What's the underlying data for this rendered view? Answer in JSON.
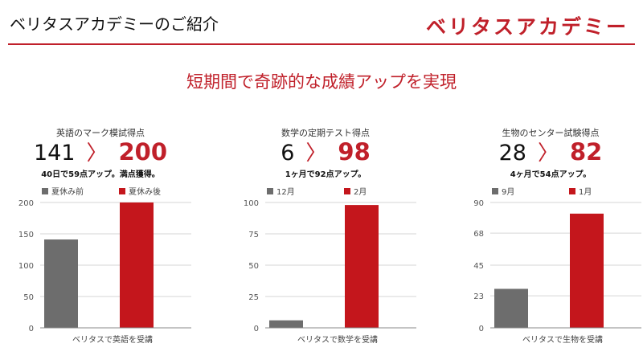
{
  "header": {
    "title": "ベリタスアカデミーのご紹介",
    "logo_text": "ベリタスアカデミー",
    "accent_color": "#c0202a"
  },
  "headline": "短期間で奇跡的な成績アップを実現",
  "panels": [
    {
      "subtitle": "英語のマーク模試得点",
      "score_before": "141",
      "arrow": "〉",
      "score_after": "200",
      "note": "40日で59点アップ。満点獲得。"
    },
    {
      "subtitle": "数学の定期テスト得点",
      "score_before": "6",
      "arrow": "〉",
      "score_after": "98",
      "note": "1ヶ月で92点アップ。"
    },
    {
      "subtitle": "生物のセンター試験得点",
      "score_before": "28",
      "arrow": "〉",
      "score_after": "82",
      "note": "4ヶ月で54点アップ。"
    }
  ],
  "chart_data": [
    {
      "type": "bar",
      "categories": [
        "ベリタスで英語を受講"
      ],
      "series": [
        {
          "name": "夏休み前",
          "values": [
            141
          ],
          "color": "#6d6d6d"
        },
        {
          "name": "夏休み後",
          "values": [
            200
          ],
          "color": "#c4161c"
        }
      ],
      "xlabel": "ベリタスで英語を受講",
      "ylim": [
        0,
        200
      ],
      "yticks": [
        "0",
        "50",
        "100",
        "150",
        "200"
      ],
      "grid": true,
      "legend": "top"
    },
    {
      "type": "bar",
      "categories": [
        "ベリタスで数学を受講"
      ],
      "series": [
        {
          "name": "12月",
          "values": [
            6
          ],
          "color": "#6d6d6d"
        },
        {
          "name": "2月",
          "values": [
            98
          ],
          "color": "#c4161c"
        }
      ],
      "xlabel": "ベリタスで数学を受講",
      "ylim": [
        0,
        100
      ],
      "yticks": [
        "0",
        "25",
        "50",
        "75",
        "100"
      ],
      "grid": true,
      "legend": "top"
    },
    {
      "type": "bar",
      "categories": [
        "ベリタスで生物を受講"
      ],
      "series": [
        {
          "name": "9月",
          "values": [
            28
          ],
          "color": "#6d6d6d"
        },
        {
          "name": "1月",
          "values": [
            82
          ],
          "color": "#c4161c"
        }
      ],
      "xlabel": "ベリタスで生物を受講",
      "ylim": [
        0,
        90
      ],
      "yticks": [
        "0",
        "23",
        "45",
        "68",
        "90"
      ],
      "grid": true,
      "legend": "top"
    }
  ]
}
